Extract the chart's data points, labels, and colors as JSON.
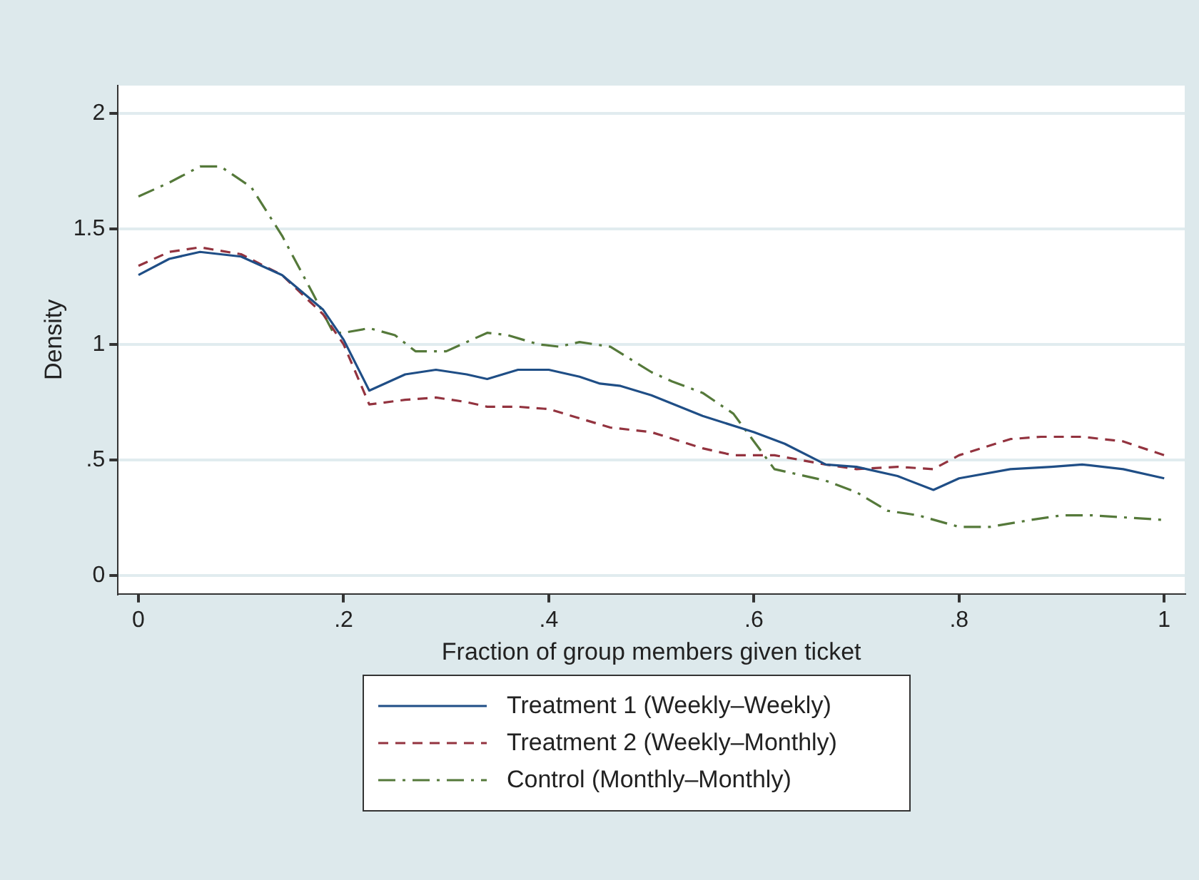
{
  "chart_data": {
    "type": "line",
    "xlabel": "Fraction of group members given ticket",
    "ylabel": "Density",
    "xlim": [
      -0.02,
      1.02
    ],
    "ylim": [
      -0.08,
      2.12
    ],
    "xticks": [
      0,
      {
        "value": 0.2,
        "label": ".2"
      },
      {
        "value": 0.4,
        "label": ".4"
      },
      {
        "value": 0.6,
        "label": ".6"
      },
      {
        "value": 0.8,
        "label": ".8"
      },
      1
    ],
    "yticks": [
      0,
      {
        "value": 0.5,
        "label": ".5"
      },
      1,
      1.5,
      2
    ],
    "grid": "y",
    "legend": "bottom",
    "marker": "none",
    "series": [
      {
        "name": "Treatment 1 (Weekly–Weekly)",
        "color": "#1f4e86",
        "line_style": "solid",
        "x": [
          0,
          0.03,
          0.06,
          0.1,
          0.14,
          0.18,
          0.2,
          0.225,
          0.26,
          0.29,
          0.32,
          0.34,
          0.37,
          0.4,
          0.43,
          0.45,
          0.47,
          0.5,
          0.55,
          0.6,
          0.63,
          0.67,
          0.7,
          0.74,
          0.775,
          0.8,
          0.85,
          0.89,
          0.92,
          0.96,
          1
        ],
        "values": [
          1.3,
          1.37,
          1.4,
          1.38,
          1.3,
          1.15,
          1.02,
          0.8,
          0.87,
          0.89,
          0.87,
          0.85,
          0.89,
          0.89,
          0.86,
          0.83,
          0.82,
          0.78,
          0.69,
          0.62,
          0.57,
          0.48,
          0.47,
          0.43,
          0.37,
          0.42,
          0.46,
          0.47,
          0.48,
          0.46,
          0.42
        ]
      },
      {
        "name": "Treatment 2 (Weekly–Monthly)",
        "color": "#93333f",
        "line_style": "dashed",
        "x": [
          0,
          0.03,
          0.06,
          0.1,
          0.14,
          0.18,
          0.2,
          0.225,
          0.26,
          0.29,
          0.32,
          0.34,
          0.37,
          0.4,
          0.43,
          0.46,
          0.5,
          0.55,
          0.58,
          0.62,
          0.67,
          0.7,
          0.74,
          0.775,
          0.8,
          0.85,
          0.88,
          0.92,
          0.96,
          1
        ],
        "values": [
          1.34,
          1.4,
          1.42,
          1.39,
          1.3,
          1.13,
          1.0,
          0.74,
          0.76,
          0.77,
          0.75,
          0.73,
          0.73,
          0.72,
          0.68,
          0.64,
          0.62,
          0.55,
          0.52,
          0.52,
          0.48,
          0.46,
          0.47,
          0.46,
          0.52,
          0.59,
          0.6,
          0.6,
          0.58,
          0.52
        ]
      },
      {
        "name": "Control (Monthly–Monthly)",
        "color": "#55793a",
        "line_style": "dashdot",
        "x": [
          0,
          0.03,
          0.06,
          0.08,
          0.11,
          0.14,
          0.17,
          0.19,
          0.2,
          0.225,
          0.25,
          0.27,
          0.3,
          0.34,
          0.36,
          0.39,
          0.41,
          0.43,
          0.46,
          0.5,
          0.52,
          0.55,
          0.58,
          0.6,
          0.62,
          0.67,
          0.7,
          0.73,
          0.76,
          0.8,
          0.83,
          0.87,
          0.9,
          0.93,
          1
        ],
        "values": [
          1.64,
          1.7,
          1.77,
          1.77,
          1.68,
          1.47,
          1.22,
          1.05,
          1.05,
          1.07,
          1.04,
          0.97,
          0.97,
          1.05,
          1.04,
          1.0,
          0.99,
          1.01,
          0.99,
          0.88,
          0.84,
          0.79,
          0.7,
          0.58,
          0.46,
          0.41,
          0.36,
          0.28,
          0.26,
          0.21,
          0.21,
          0.24,
          0.26,
          0.26,
          0.24
        ]
      }
    ]
  }
}
